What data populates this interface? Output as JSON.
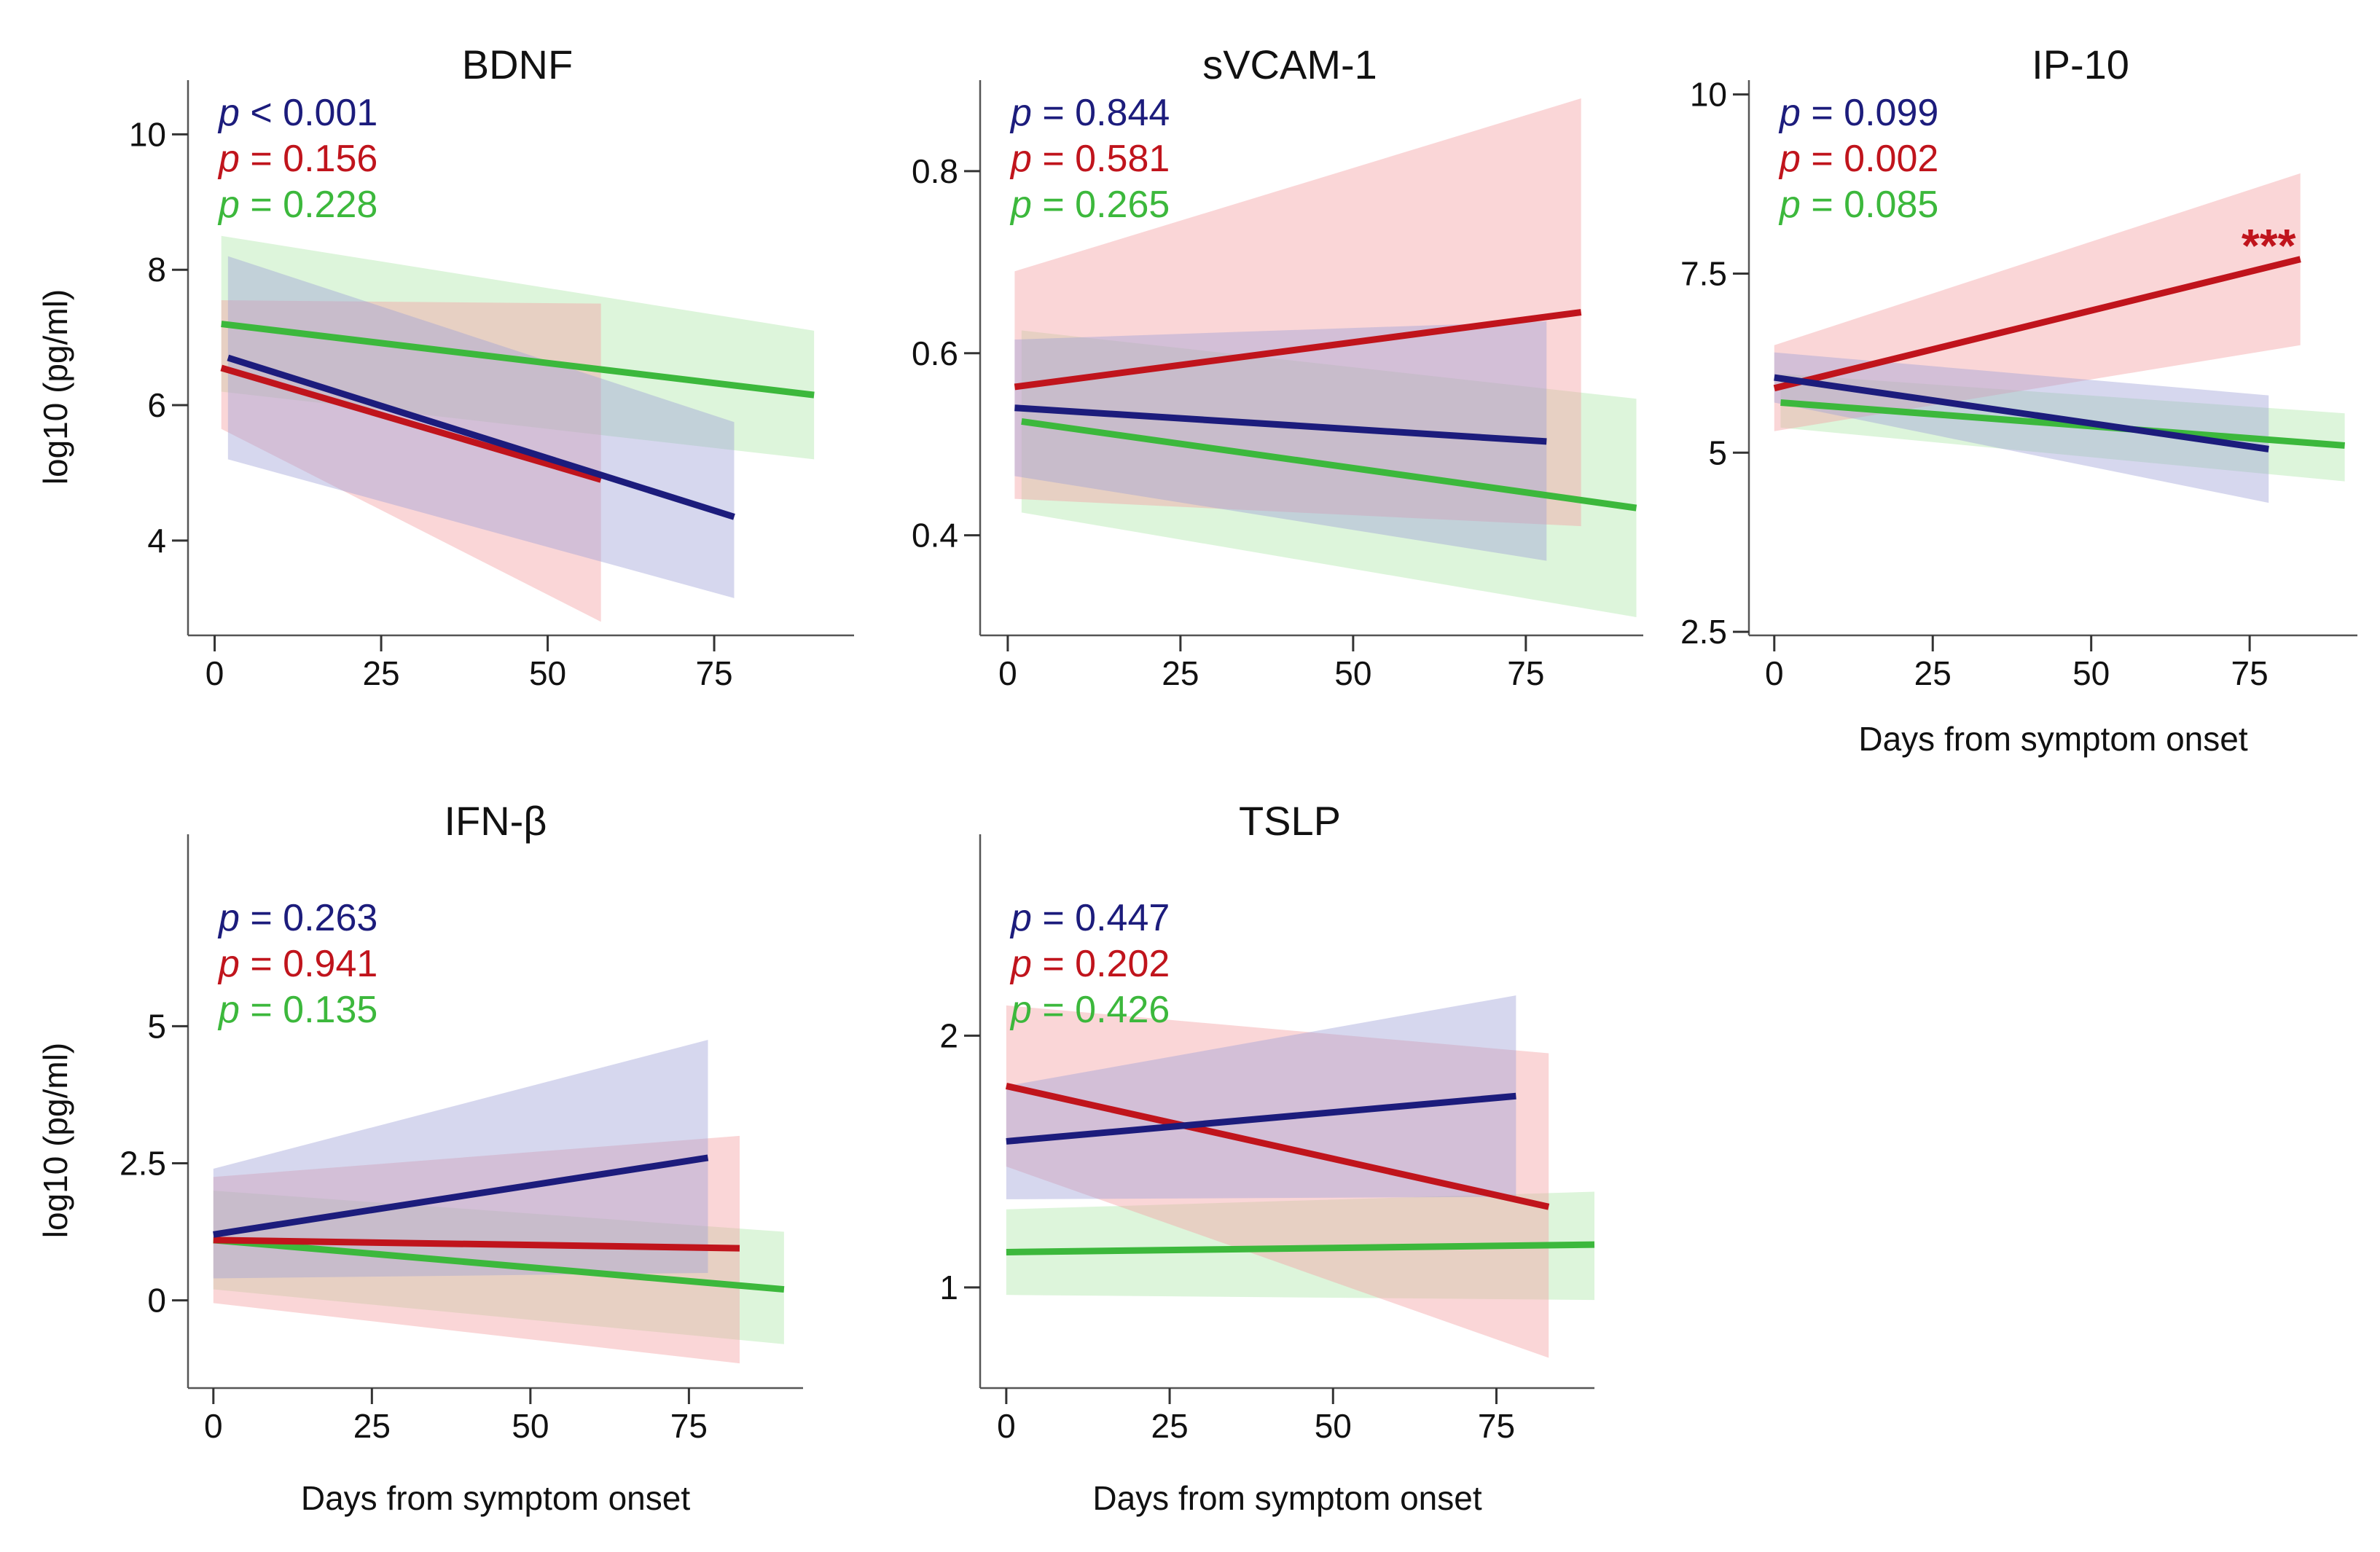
{
  "figure": {
    "ylabel": "log10 (pg/ml)",
    "xlabel": "Days from symptom onset"
  },
  "colors": {
    "blue": "#1c1c7c",
    "red": "#c0141c",
    "green": "#3cb83c",
    "blue_band": "#9ea0d6",
    "red_band": "#f3a3a7",
    "green_band": "#aee8aa"
  },
  "chart_data": [
    {
      "type": "line",
      "title": "BDNF",
      "xlabel": "",
      "ylabel": "log10 (pg/ml)",
      "xticks": [
        0,
        25,
        50,
        75
      ],
      "yticks": [
        4,
        6,
        8,
        10
      ],
      "xlim": [
        -4,
        96
      ],
      "ylim": [
        2.6,
        10.8
      ],
      "series": [
        {
          "name": "blue",
          "color": "blue",
          "pvalue": "p < 0.001",
          "x": [
            2,
            78
          ],
          "y": [
            6.7,
            4.35
          ],
          "ci_lower": [
            5.2,
            3.15
          ],
          "ci_upper": [
            8.2,
            5.75
          ],
          "ci_x": [
            2,
            78
          ]
        },
        {
          "name": "red",
          "color": "red",
          "pvalue": "p = 0.156",
          "x": [
            1,
            58
          ],
          "y": [
            6.55,
            4.9
          ],
          "ci_lower": [
            5.65,
            2.8
          ],
          "ci_upper": [
            7.55,
            7.5
          ],
          "ci_x": [
            1,
            58
          ]
        },
        {
          "name": "green",
          "color": "green",
          "pvalue": "p = 0.228",
          "x": [
            1,
            90
          ],
          "y": [
            7.2,
            6.15
          ],
          "ci_lower": [
            6.2,
            5.2
          ],
          "ci_upper": [
            8.5,
            7.1
          ],
          "ci_x": [
            1,
            90
          ]
        }
      ]
    },
    {
      "type": "line",
      "title": "sVCAM-1",
      "xlabel": "",
      "ylabel": "",
      "xticks": [
        0,
        25,
        50,
        75
      ],
      "yticks": [
        0.4,
        0.6,
        0.8
      ],
      "xlim": [
        -4,
        92
      ],
      "ylim": [
        0.29,
        0.9
      ],
      "series": [
        {
          "name": "blue",
          "color": "blue",
          "pvalue": "p = 0.844",
          "x": [
            1,
            78
          ],
          "y": [
            0.54,
            0.503
          ],
          "ci_lower": [
            0.465,
            0.372
          ],
          "ci_upper": [
            0.615,
            0.635
          ],
          "ci_x": [
            1,
            78
          ]
        },
        {
          "name": "red",
          "color": "red",
          "pvalue": "p = 0.581",
          "x": [
            1,
            83
          ],
          "y": [
            0.563,
            0.645
          ],
          "ci_lower": [
            0.44,
            0.41
          ],
          "ci_upper": [
            0.69,
            0.88
          ],
          "ci_x": [
            1,
            83
          ]
        },
        {
          "name": "green",
          "color": "green",
          "pvalue": "p = 0.265",
          "x": [
            2,
            91
          ],
          "y": [
            0.525,
            0.43
          ],
          "ci_lower": [
            0.425,
            0.31
          ],
          "ci_upper": [
            0.625,
            0.55
          ],
          "ci_x": [
            2,
            91
          ]
        }
      ]
    },
    {
      "type": "line",
      "title": "IP-10",
      "xlabel": "Days from symptom onset",
      "ylabel": "",
      "xticks": [
        0,
        25,
        50,
        75
      ],
      "yticks": [
        2.5,
        5,
        7.5,
        10
      ],
      "ytick_labels": [
        "2.5",
        "5",
        "7.5",
        "10"
      ],
      "xlim": [
        -4,
        92
      ],
      "ylim": [
        2.45,
        10.2
      ],
      "annotation": {
        "text": "***",
        "color": "red",
        "x": 78,
        "y": 7.85
      },
      "series": [
        {
          "name": "blue",
          "color": "blue",
          "pvalue": "p = 0.099",
          "x": [
            0,
            78
          ],
          "y": [
            6.05,
            5.05
          ],
          "ci_lower": [
            5.7,
            4.3
          ],
          "ci_upper": [
            6.4,
            5.8
          ],
          "ci_x": [
            0,
            78
          ]
        },
        {
          "name": "red",
          "color": "red",
          "pvalue": "p = 0.002",
          "x": [
            0,
            83
          ],
          "y": [
            5.9,
            7.7
          ],
          "ci_lower": [
            5.3,
            6.5
          ],
          "ci_upper": [
            6.5,
            8.9
          ],
          "ci_x": [
            0,
            83
          ]
        },
        {
          "name": "green",
          "color": "green",
          "pvalue": "p = 0.085",
          "x": [
            1,
            90
          ],
          "y": [
            5.7,
            5.1
          ],
          "ci_lower": [
            5.35,
            4.6
          ],
          "ci_upper": [
            6.1,
            5.55
          ],
          "ci_x": [
            1,
            90
          ]
        }
      ]
    },
    {
      "type": "line",
      "title": "IFN-β",
      "xlabel": "Days from symptom onset",
      "ylabel": "log10 (pg/ml)",
      "xticks": [
        0,
        25,
        50,
        75
      ],
      "yticks": [
        0,
        2.5,
        5
      ],
      "ytick_labels": [
        "0",
        "2.5",
        "5"
      ],
      "xlim": [
        -4,
        93
      ],
      "ylim": [
        -1.6,
        8.5
      ],
      "series": [
        {
          "name": "blue",
          "color": "blue",
          "pvalue": "p = 0.263",
          "x": [
            0,
            78
          ],
          "y": [
            1.2,
            2.6
          ],
          "ci_lower": [
            0.4,
            0.5
          ],
          "ci_upper": [
            2.4,
            4.75
          ],
          "ci_x": [
            0,
            78
          ]
        },
        {
          "name": "red",
          "color": "red",
          "pvalue": "p = 0.941",
          "x": [
            0,
            83
          ],
          "y": [
            1.1,
            0.95
          ],
          "ci_lower": [
            -0.05,
            -1.15
          ],
          "ci_upper": [
            2.25,
            3.0
          ],
          "ci_x": [
            0,
            83
          ]
        },
        {
          "name": "green",
          "color": "green",
          "pvalue": "p = 0.135",
          "x": [
            0,
            90
          ],
          "y": [
            1.1,
            0.2
          ],
          "ci_lower": [
            0.2,
            -0.8
          ],
          "ci_upper": [
            2.0,
            1.25
          ],
          "ci_x": [
            0,
            90
          ]
        }
      ]
    },
    {
      "type": "line",
      "title": "TSLP",
      "xlabel": "Days from symptom onset",
      "ylabel": "",
      "xticks": [
        0,
        25,
        50,
        75
      ],
      "yticks": [
        1,
        2
      ],
      "xlim": [
        -4,
        90
      ],
      "ylim": [
        0.6,
        2.8
      ],
      "series": [
        {
          "name": "blue",
          "color": "blue",
          "pvalue": "p = 0.447",
          "x": [
            0,
            78
          ],
          "y": [
            1.58,
            1.76
          ],
          "ci_lower": [
            1.35,
            1.36
          ],
          "ci_upper": [
            1.8,
            2.16
          ],
          "ci_x": [
            0,
            78
          ]
        },
        {
          "name": "red",
          "color": "red",
          "pvalue": "p = 0.202",
          "x": [
            0,
            83
          ],
          "y": [
            1.8,
            1.32
          ],
          "ci_lower": [
            1.48,
            0.72
          ],
          "ci_upper": [
            2.12,
            1.93
          ],
          "ci_x": [
            0,
            83
          ]
        },
        {
          "name": "green",
          "color": "green",
          "pvalue": "p = 0.426",
          "x": [
            0,
            90
          ],
          "y": [
            1.14,
            1.17
          ],
          "ci_lower": [
            0.97,
            0.95
          ],
          "ci_upper": [
            1.31,
            1.38
          ],
          "ci_x": [
            0,
            90
          ]
        }
      ]
    }
  ]
}
